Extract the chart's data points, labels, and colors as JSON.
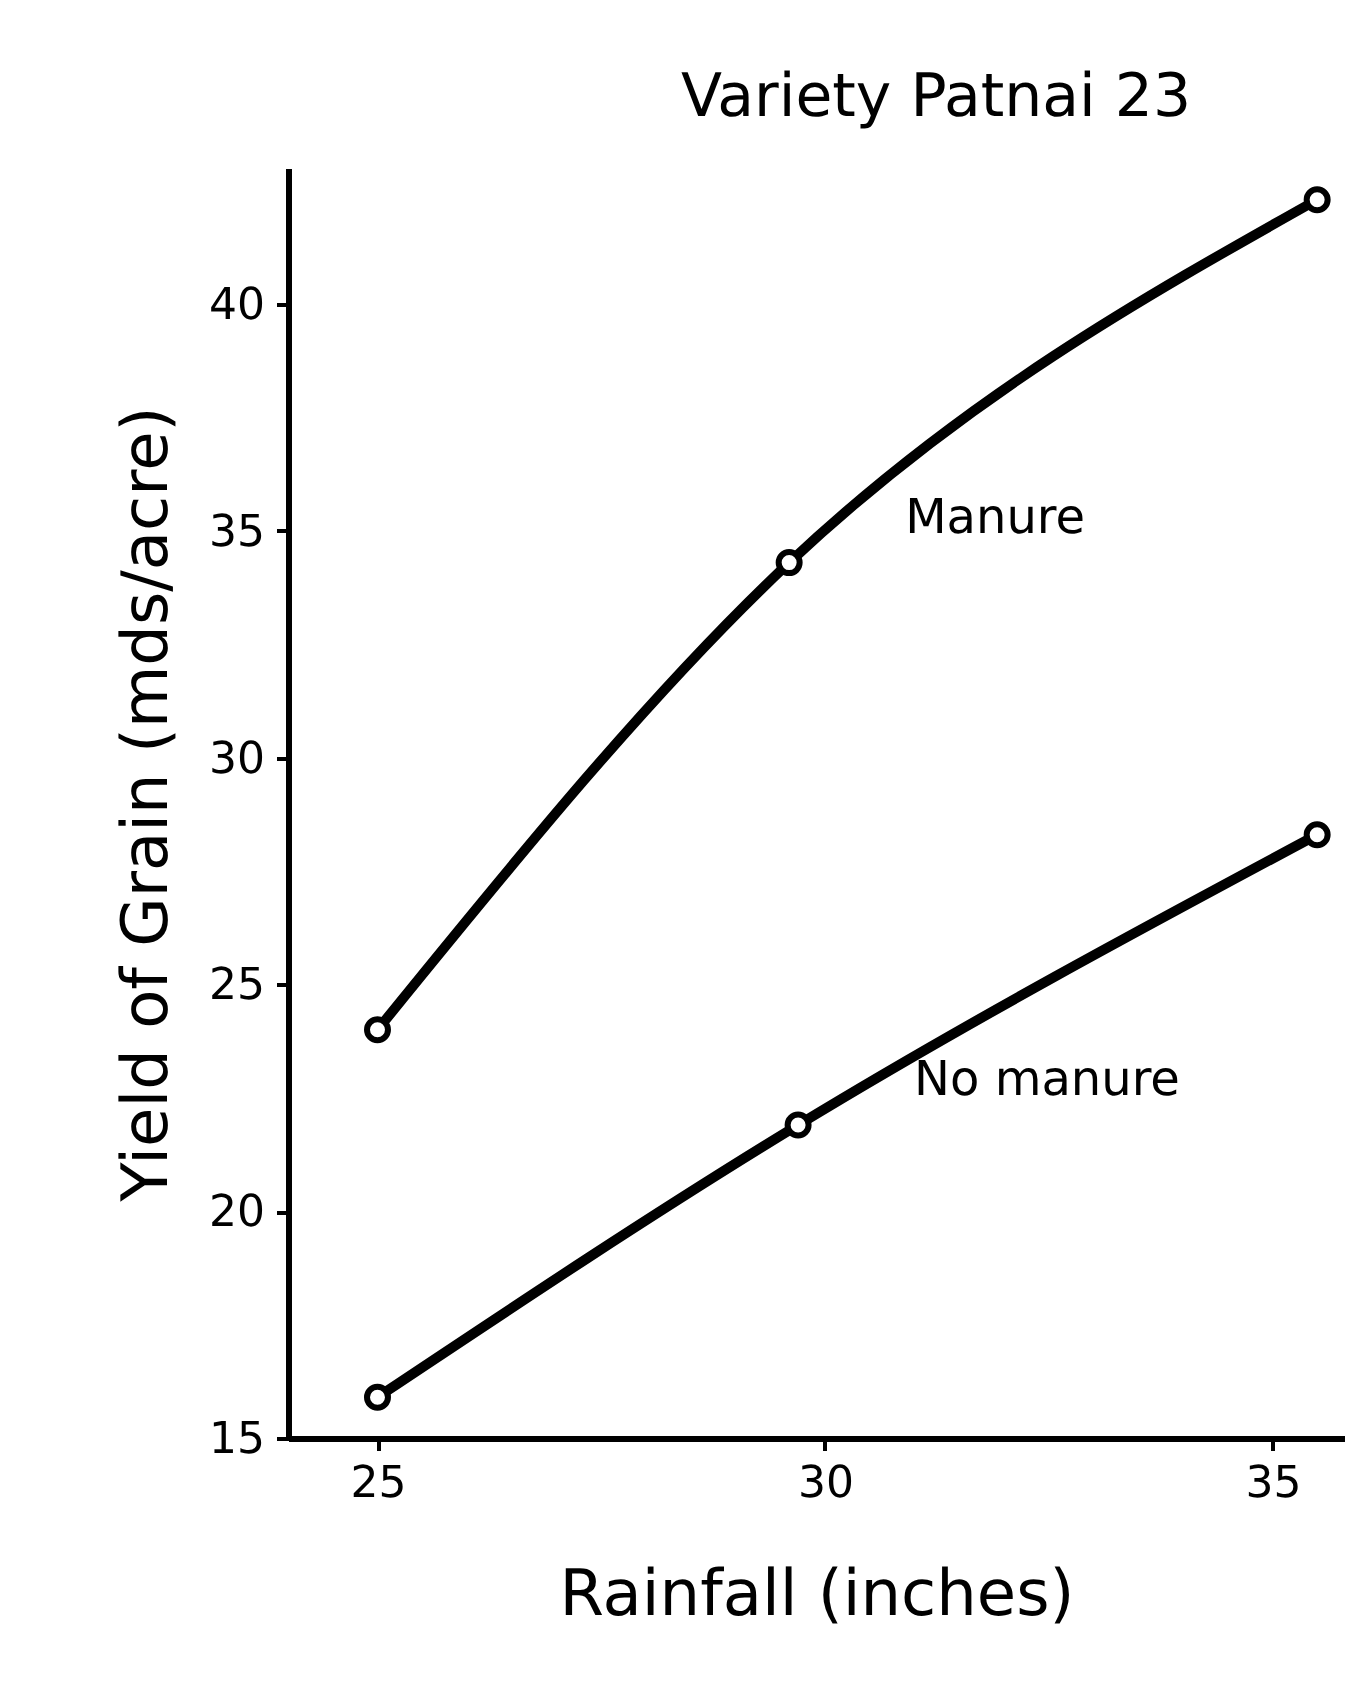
{
  "chart_data": {
    "type": "line",
    "title": "Variety Patnai 23",
    "xlabel": "Rainfall (inches)",
    "ylabel": "Yield of Grain (mds/acre)",
    "xlim": [
      24,
      35.8
    ],
    "xticks": [
      25,
      30,
      35
    ],
    "ylim": [
      15,
      43
    ],
    "yticks": [
      15,
      20,
      25,
      30,
      35,
      40
    ],
    "grid": false,
    "legend": false,
    "marker": "circle",
    "line_style": "solid",
    "series": [
      {
        "name": "Manure",
        "color": "#000000",
        "x": [
          25,
          29.6,
          35.5
        ],
        "values": [
          24.0,
          34.3,
          42.3
        ]
      },
      {
        "name": "No manure",
        "color": "#000000",
        "x": [
          25,
          29.7,
          35.5
        ],
        "values": [
          15.9,
          21.9,
          28.3
        ]
      }
    ]
  }
}
